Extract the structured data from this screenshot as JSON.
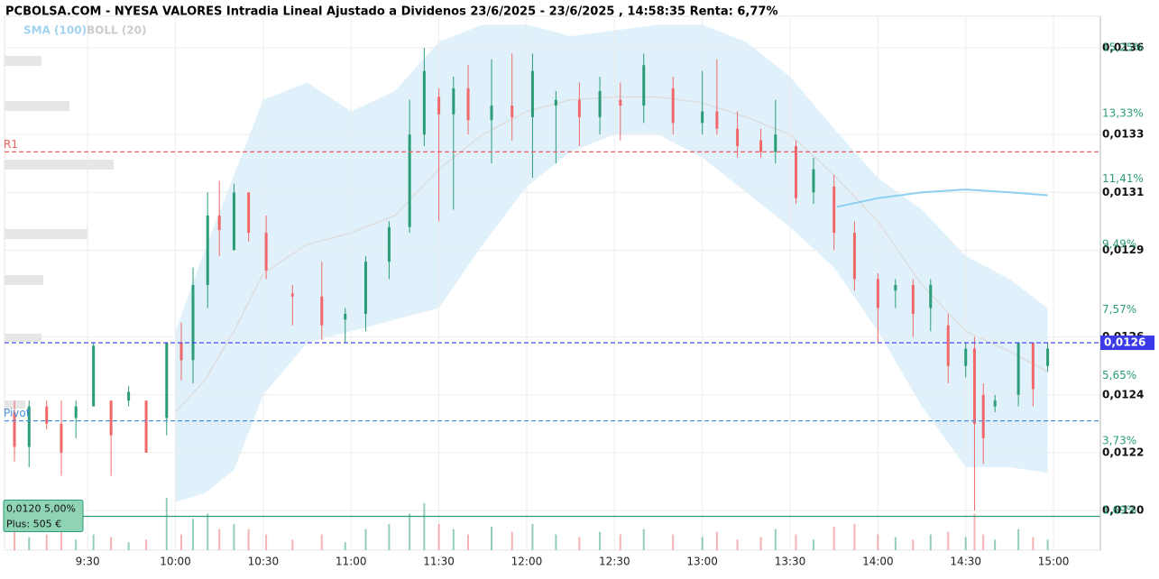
{
  "chart_data": {
    "type": "candlestick",
    "title": "PCBOLSA.COM - NYESA VALORES Intradia Lineal Ajustado a Dividenos 23/6/2025 - 23/6/2025 , 14:58:35 Renta: 6,77%",
    "legend": [
      "SMA (100)",
      "BOLL (20)"
    ],
    "grid": true,
    "xlim": [
      541.6,
      916
    ],
    "xticks": [
      {
        "value": 570,
        "label": "9:30"
      },
      {
        "value": 600,
        "label": "10:00"
      },
      {
        "value": 630,
        "label": "10:30"
      },
      {
        "value": 660,
        "label": "11:00"
      },
      {
        "value": 690,
        "label": "11:30"
      },
      {
        "value": 720,
        "label": "12:00"
      },
      {
        "value": 750,
        "label": "12:30"
      },
      {
        "value": 780,
        "label": "13:00"
      },
      {
        "value": 810,
        "label": "13:30"
      },
      {
        "value": 840,
        "label": "14:00"
      },
      {
        "value": 870,
        "label": "14:30"
      },
      {
        "value": 900,
        "label": "15:00"
      }
    ],
    "ylim": [
      0.011863,
      0.013709
    ],
    "yticks": [
      {
        "value": 0.012,
        "label": "0,0120"
      },
      {
        "value": 0.0122,
        "label": "0,0122"
      },
      {
        "value": 0.0124,
        "label": "0,0124"
      },
      {
        "value": 0.0126,
        "label": "0,0126"
      },
      {
        "value": 0.0129,
        "label": "0,0129"
      },
      {
        "value": 0.0131,
        "label": "0,0131"
      },
      {
        "value": 0.0133,
        "label": "0,0133"
      },
      {
        "value": 0.0136,
        "label": "0,0136"
      }
    ],
    "y2lim": [
      0.53,
      16.18
    ],
    "y2ticks": [
      {
        "value": 1.69,
        "label": "1,69%"
      },
      {
        "value": 3.73,
        "label": "3,73%"
      },
      {
        "value": 5.65,
        "label": "5,65%"
      },
      {
        "value": 7.57,
        "label": "7,57%"
      },
      {
        "value": 9.49,
        "label": "9,49%"
      },
      {
        "value": 11.41,
        "label": "11,41%"
      },
      {
        "value": 13.33,
        "label": "13,33%"
      },
      {
        "value": 15.25,
        "label": "15,25%"
      }
    ],
    "up_color": "#2a9d78",
    "down_color": "#f0686a",
    "x": [
      545,
      550,
      556,
      561,
      566,
      572,
      578,
      584,
      590,
      597,
      602,
      606,
      611,
      615,
      620,
      625,
      631,
      640,
      650,
      658,
      665,
      673,
      680,
      685,
      690,
      695,
      700,
      708,
      715,
      722,
      730,
      738,
      745,
      752,
      760,
      770,
      780,
      785,
      792,
      800,
      805,
      812,
      818,
      825,
      832,
      840,
      846,
      852,
      858,
      864,
      870,
      873,
      876,
      880,
      888,
      893,
      898
    ],
    "open": [
      0.01234,
      0.01222,
      0.01236,
      0.0123,
      0.01232,
      0.01236,
      0.01238,
      0.01238,
      0.01238,
      0.01232,
      0.01258,
      0.01252,
      0.01278,
      0.01302,
      0.0129,
      0.0131,
      0.01296,
      0.01275,
      0.01274,
      0.01266,
      0.01268,
      0.01286,
      0.01298,
      0.0133,
      0.01343,
      0.01337,
      0.01346,
      0.01335,
      0.0134,
      0.01336,
      0.0134,
      0.01342,
      0.01336,
      0.01342,
      0.0134,
      0.01346,
      0.01334,
      0.01338,
      0.01332,
      0.01328,
      0.01324,
      0.01326,
      0.0131,
      0.01312,
      0.01296,
      0.0128,
      0.01276,
      0.01278,
      0.0127,
      0.01264,
      0.0125,
      0.01256,
      0.0124,
      0.01236,
      0.0124,
      0.01258,
      0.0125
    ],
    "high": [
      0.01238,
      0.01238,
      0.01238,
      0.01238,
      0.01238,
      0.01258,
      0.01238,
      0.01243,
      0.01238,
      0.01258,
      0.01265,
      0.01284,
      0.0131,
      0.01314,
      0.01313,
      0.0131,
      0.01302,
      0.01278,
      0.01286,
      0.0127,
      0.01288,
      0.013,
      0.01342,
      0.0136,
      0.01346,
      0.0135,
      0.01354,
      0.01356,
      0.01358,
      0.01358,
      0.01345,
      0.01348,
      0.0135,
      0.01348,
      0.01358,
      0.0135,
      0.01352,
      0.01356,
      0.01338,
      0.01332,
      0.01342,
      0.01328,
      0.01322,
      0.01316,
      0.013,
      0.01282,
      0.0128,
      0.0128,
      0.0128,
      0.01268,
      0.01258,
      0.0126,
      0.01244,
      0.0124,
      0.01258,
      0.01258,
      0.01258
    ],
    "low": [
      0.01217,
      0.01215,
      0.01228,
      0.01212,
      0.01225,
      0.01236,
      0.01212,
      0.01236,
      0.0122,
      0.01226,
      0.01245,
      0.01244,
      0.0127,
      0.01288,
      0.0129,
      0.01293,
      0.0128,
      0.01264,
      0.01259,
      0.01258,
      0.01262,
      0.0128,
      0.01296,
      0.01326,
      0.013,
      0.01304,
      0.0133,
      0.0132,
      0.01328,
      0.01315,
      0.0132,
      0.01326,
      0.0133,
      0.01328,
      0.01334,
      0.0133,
      0.0133,
      0.0133,
      0.01322,
      0.01322,
      0.0132,
      0.01306,
      0.01306,
      0.0129,
      0.01276,
      0.01258,
      0.0127,
      0.0126,
      0.01262,
      0.01244,
      0.01246,
      0.012,
      0.01216,
      0.01234,
      0.01236,
      0.01236,
      0.01248
    ],
    "close": [
      0.01222,
      0.01236,
      0.0123,
      0.0122,
      0.01236,
      0.01257,
      0.01226,
      0.01241,
      0.0122,
      0.01258,
      0.01252,
      0.01278,
      0.01302,
      0.01297,
      0.0131,
      0.01296,
      0.01283,
      0.01274,
      0.01264,
      0.01268,
      0.01286,
      0.01298,
      0.0133,
      0.01352,
      0.01337,
      0.01346,
      0.01335,
      0.0134,
      0.01336,
      0.01352,
      0.01342,
      0.01336,
      0.01345,
      0.0134,
      0.01354,
      0.01334,
      0.01338,
      0.01332,
      0.01326,
      0.01324,
      0.0133,
      0.01308,
      0.01318,
      0.01296,
      0.0128,
      0.0127,
      0.01278,
      0.01268,
      0.01278,
      0.0125,
      0.01256,
      0.0123,
      0.01225,
      0.01238,
      0.01258,
      0.01242,
      0.01256
    ],
    "volume": [
      8,
      5,
      6,
      10,
      4,
      6,
      5,
      3,
      4,
      20,
      6,
      12,
      14,
      8,
      10,
      8,
      6,
      4,
      6,
      3,
      8,
      10,
      14,
      18,
      10,
      8,
      6,
      9,
      7,
      10,
      6,
      5,
      7,
      6,
      8,
      6,
      5,
      7,
      4,
      5,
      8,
      6,
      4,
      9,
      10,
      6,
      5,
      4,
      6,
      7,
      5,
      14,
      6,
      4,
      8,
      5,
      4
    ],
    "bollinger": {
      "color": "#d6ecfa",
      "x": [
        600,
        610,
        620,
        630,
        645,
        660,
        675,
        690,
        705,
        720,
        735,
        750,
        765,
        780,
        795,
        810,
        825,
        840,
        855,
        870,
        885,
        898
      ],
      "upper": [
        0.01262,
        0.0129,
        0.01316,
        0.01342,
        0.01348,
        0.01338,
        0.01345,
        0.01362,
        0.01368,
        0.01368,
        0.01364,
        0.01366,
        0.01368,
        0.01368,
        0.01362,
        0.0135,
        0.01332,
        0.01315,
        0.01304,
        0.01288,
        0.0128,
        0.0127
      ],
      "lower": [
        0.01203,
        0.01206,
        0.01214,
        0.0124,
        0.01258,
        0.01262,
        0.01266,
        0.0127,
        0.01292,
        0.01312,
        0.01324,
        0.0133,
        0.0133,
        0.01322,
        0.0131,
        0.01298,
        0.01284,
        0.01262,
        0.01236,
        0.01215,
        0.01215,
        0.01213
      ],
      "mid": [
        0.01234,
        0.01245,
        0.01262,
        0.01282,
        0.01292,
        0.01296,
        0.01302,
        0.01318,
        0.0133,
        0.01338,
        0.01342,
        0.01343,
        0.01343,
        0.01341,
        0.01336,
        0.0133,
        0.01316,
        0.013,
        0.01278,
        0.01262,
        0.01255,
        0.01248
      ]
    },
    "sma": {
      "color": "#8fd0f2",
      "x": [
        826,
        840,
        855,
        870,
        885,
        898
      ],
      "values": [
        0.01305,
        0.01308,
        0.0131,
        0.01311,
        0.0131,
        0.01309
      ]
    },
    "price_lines": [
      {
        "label": "R1",
        "value": 0.01324,
        "color": "#f06060"
      },
      {
        "label": "Pivot",
        "value": 0.01231,
        "color": "#4a90d9"
      },
      {
        "label": "0,0126",
        "value": 0.01258,
        "color": "#3a3ae8"
      },
      {
        "label": "0,0120  5,00%",
        "sublabel": "Plus: 505 €",
        "value": 0.01198,
        "color": "#2a9d78"
      }
    ]
  }
}
